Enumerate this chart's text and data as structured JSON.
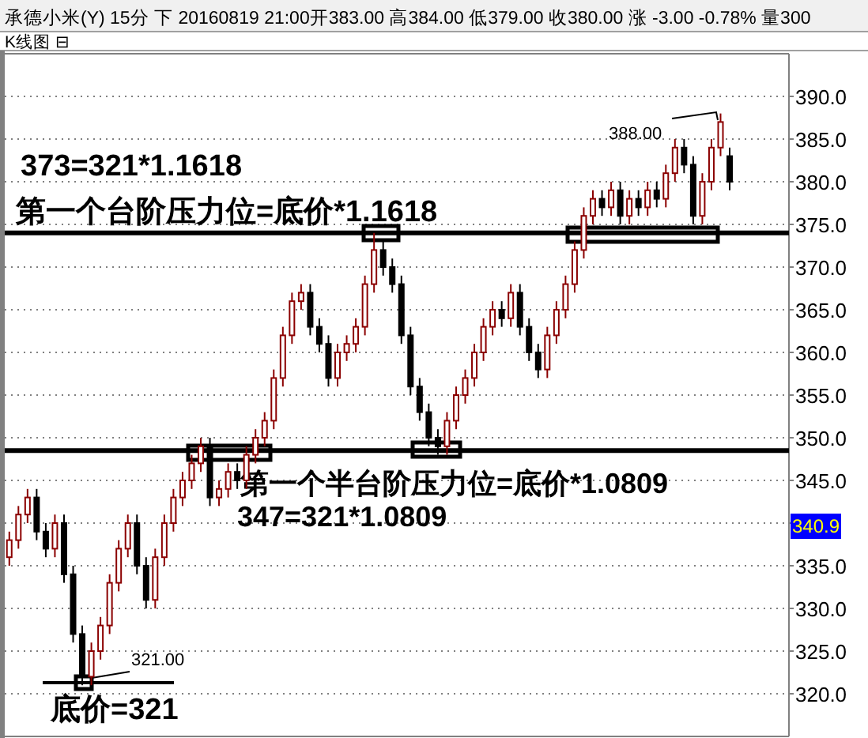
{
  "chart_data": {
    "type": "candlestick",
    "title": "承德小米(Y) 15分 下 20160819 21:00开383.00 高384.00 低379.00 收380.00 涨 -3.00 -0.78% 量300",
    "subtitle": "K线图 ⊟",
    "categories": [
      null,
      null,
      null,
      null,
      null,
      null,
      null,
      null,
      null,
      null,
      null,
      null,
      null,
      null,
      null,
      null,
      null,
      null,
      null,
      null,
      null,
      null,
      null,
      null,
      null,
      null,
      null,
      null,
      null,
      null,
      null,
      null,
      null,
      null,
      null,
      null,
      null,
      null,
      null,
      null,
      null,
      null,
      null,
      null,
      null,
      null,
      null,
      null,
      null,
      null,
      null,
      null,
      null,
      null,
      null,
      null,
      null,
      null,
      null,
      null,
      null,
      null,
      null,
      null,
      null,
      null,
      null,
      null,
      null,
      null,
      null,
      null,
      null,
      null,
      null,
      null,
      null,
      null,
      null,
      null,
      null,
      null,
      null,
      null,
      null,
      null
    ],
    "ohlc": [
      [
        336,
        339,
        335,
        338
      ],
      [
        338,
        342,
        337,
        341
      ],
      [
        341,
        344,
        340,
        343
      ],
      [
        343,
        344,
        338,
        339
      ],
      [
        339,
        340,
        336,
        337
      ],
      [
        337,
        341,
        336,
        340
      ],
      [
        340,
        341,
        333,
        334
      ],
      [
        334,
        335,
        326,
        327
      ],
      [
        327,
        328,
        321,
        322
      ],
      [
        322,
        326,
        321,
        325
      ],
      [
        325,
        329,
        324,
        328
      ],
      [
        328,
        334,
        327,
        333
      ],
      [
        333,
        338,
        332,
        337
      ],
      [
        337,
        341,
        336,
        340
      ],
      [
        340,
        341,
        334,
        335
      ],
      [
        335,
        336,
        330,
        331
      ],
      [
        331,
        337,
        330,
        336
      ],
      [
        336,
        341,
        335,
        340
      ],
      [
        340,
        344,
        339,
        343
      ],
      [
        343,
        346,
        342,
        345
      ],
      [
        345,
        348,
        344,
        347
      ],
      [
        347,
        350,
        346,
        349
      ],
      [
        349,
        350,
        342,
        343
      ],
      [
        343,
        345,
        342,
        344
      ],
      [
        344,
        347,
        343,
        346
      ],
      [
        346,
        347,
        344,
        345
      ],
      [
        345,
        349,
        344,
        348
      ],
      [
        348,
        351,
        347,
        350
      ],
      [
        350,
        353,
        349,
        352
      ],
      [
        352,
        358,
        351,
        357
      ],
      [
        357,
        363,
        356,
        362
      ],
      [
        362,
        367,
        361,
        366
      ],
      [
        366,
        368,
        365,
        367
      ],
      [
        367,
        368,
        362,
        363
      ],
      [
        363,
        364,
        360,
        361
      ],
      [
        361,
        362,
        356,
        357
      ],
      [
        357,
        361,
        356,
        360
      ],
      [
        360,
        362,
        359,
        361
      ],
      [
        361,
        364,
        360,
        363
      ],
      [
        363,
        369,
        362,
        368
      ],
      [
        368,
        374,
        367,
        372
      ],
      [
        372,
        373,
        369,
        370
      ],
      [
        370,
        371,
        367,
        368
      ],
      [
        368,
        369,
        361,
        362
      ],
      [
        362,
        363,
        355,
        356
      ],
      [
        356,
        357,
        352,
        353
      ],
      [
        353,
        354,
        349,
        350
      ],
      [
        350,
        351,
        348,
        349
      ],
      [
        349,
        353,
        348,
        352
      ],
      [
        352,
        356,
        351,
        355
      ],
      [
        355,
        358,
        354,
        357
      ],
      [
        357,
        361,
        356,
        360
      ],
      [
        360,
        364,
        359,
        363
      ],
      [
        363,
        366,
        362,
        365
      ],
      [
        365,
        366,
        363,
        364
      ],
      [
        364,
        368,
        363,
        367
      ],
      [
        367,
        368,
        362,
        363
      ],
      [
        363,
        364,
        359,
        360
      ],
      [
        360,
        361,
        357,
        358
      ],
      [
        358,
        363,
        357,
        362
      ],
      [
        362,
        366,
        361,
        365
      ],
      [
        365,
        369,
        364,
        368
      ],
      [
        368,
        373,
        367,
        372
      ],
      [
        372,
        377,
        371,
        376
      ],
      [
        376,
        379,
        375,
        378
      ],
      [
        378,
        379,
        376,
        377
      ],
      [
        377,
        380,
        376,
        379
      ],
      [
        379,
        380,
        375,
        376
      ],
      [
        376,
        379,
        375,
        378
      ],
      [
        378,
        379,
        376,
        377
      ],
      [
        377,
        380,
        376,
        379
      ],
      [
        379,
        380,
        377,
        378
      ],
      [
        378,
        382,
        377,
        381
      ],
      [
        381,
        385,
        380,
        384
      ],
      [
        384,
        385,
        381,
        382
      ],
      [
        382,
        383,
        375,
        376
      ],
      [
        376,
        381,
        375,
        380
      ],
      [
        380,
        385,
        379,
        384
      ],
      [
        384,
        388,
        383,
        387
      ],
      [
        383,
        384,
        379,
        380
      ],
      null,
      null,
      null,
      null,
      null,
      null
    ],
    "ylim": [
      315,
      395
    ],
    "yticks": [
      {
        "value": 320,
        "label": "320.0"
      },
      {
        "value": 325,
        "label": "325.0"
      },
      {
        "value": 330,
        "label": "330.0"
      },
      {
        "value": 335,
        "label": "335.0"
      },
      {
        "value": 340,
        "label": null
      },
      {
        "value": 345,
        "label": "345.0"
      },
      {
        "value": 350,
        "label": "350.0"
      },
      {
        "value": 355,
        "label": "355.0"
      },
      {
        "value": 360,
        "label": "360.0"
      },
      {
        "value": 365,
        "label": "365.0"
      },
      {
        "value": 370,
        "label": "370.0"
      },
      {
        "value": 375,
        "label": "375.0"
      },
      {
        "value": 380,
        "label": "380.0"
      },
      {
        "value": 385,
        "label": "385.0"
      },
      {
        "value": 390,
        "label": "390.0"
      }
    ],
    "grid": "y",
    "tick_labels": "y",
    "ref_lines": [
      {
        "axis": "y",
        "value": 374
      },
      {
        "axis": "y",
        "value": 348.5
      }
    ],
    "annotations": [
      "373=321*1.1618",
      "第一个台阶压力位=底价*1.1618",
      "第一个半台阶压力位=底价*1.0809",
      "347=321*1.0809",
      "底价=321",
      "388.00",
      "321.00",
      "340.9"
    ]
  }
}
